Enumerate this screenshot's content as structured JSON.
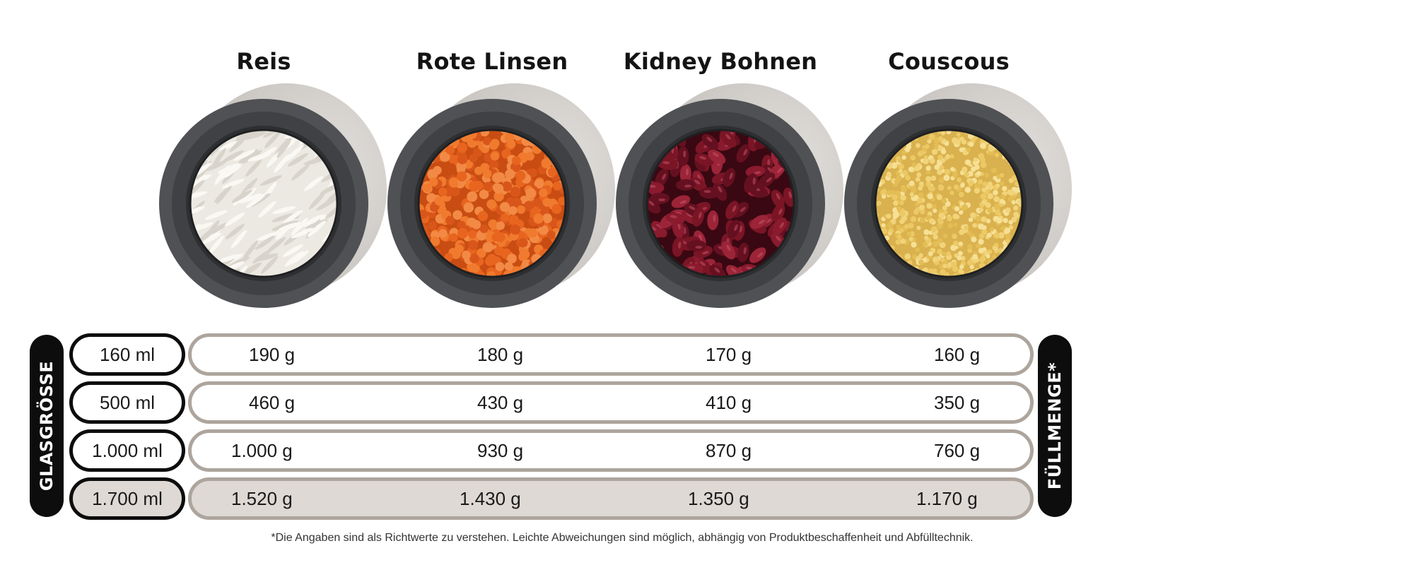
{
  "products": [
    {
      "name": "Reis",
      "filling": "rice"
    },
    {
      "name": "Rote Linsen",
      "filling": "lentils"
    },
    {
      "name": "Kidney Bohnen",
      "filling": "beans"
    },
    {
      "name": "Couscous",
      "filling": "couscous"
    }
  ],
  "labels": {
    "left": "GLASGRÖSSE",
    "right": "FÜLLMENGE*"
  },
  "table": {
    "rows": [
      {
        "size": "160 ml",
        "values": [
          "190 g",
          "180 g",
          "170 g",
          "160 g"
        ],
        "highlight": false
      },
      {
        "size": "500 ml",
        "values": [
          "460 g",
          "430 g",
          "410 g",
          "350 g"
        ],
        "highlight": false
      },
      {
        "size": "1.000 ml",
        "values": [
          "1.000 g",
          "930 g",
          "870 g",
          "760 g"
        ],
        "highlight": false
      },
      {
        "size": "1.700 ml",
        "values": [
          "1.520 g",
          "1.430 g",
          "1.350 g",
          "1.170 g"
        ],
        "highlight": true
      }
    ]
  },
  "footnote": "*Die Angaben sind als Richtwerte zu verstehen. Leichte Abweichungen sind möglich, abhängig von Produktbeschaffenheit und Abfülltechnik.",
  "colors": {
    "pill_border": "#0d0d0d",
    "bar_border": "#ada59d",
    "highlight_fill": "#ded9d5",
    "jar_rim": "#4f5154",
    "jar_shadow": "#c9c5c1",
    "rice": "#ece9e2",
    "lentils": "#e8651f",
    "beans": "#7a1526",
    "couscous": "#ecc965"
  },
  "icons": {
    "jar": "storage-jar-top-view-icon"
  }
}
